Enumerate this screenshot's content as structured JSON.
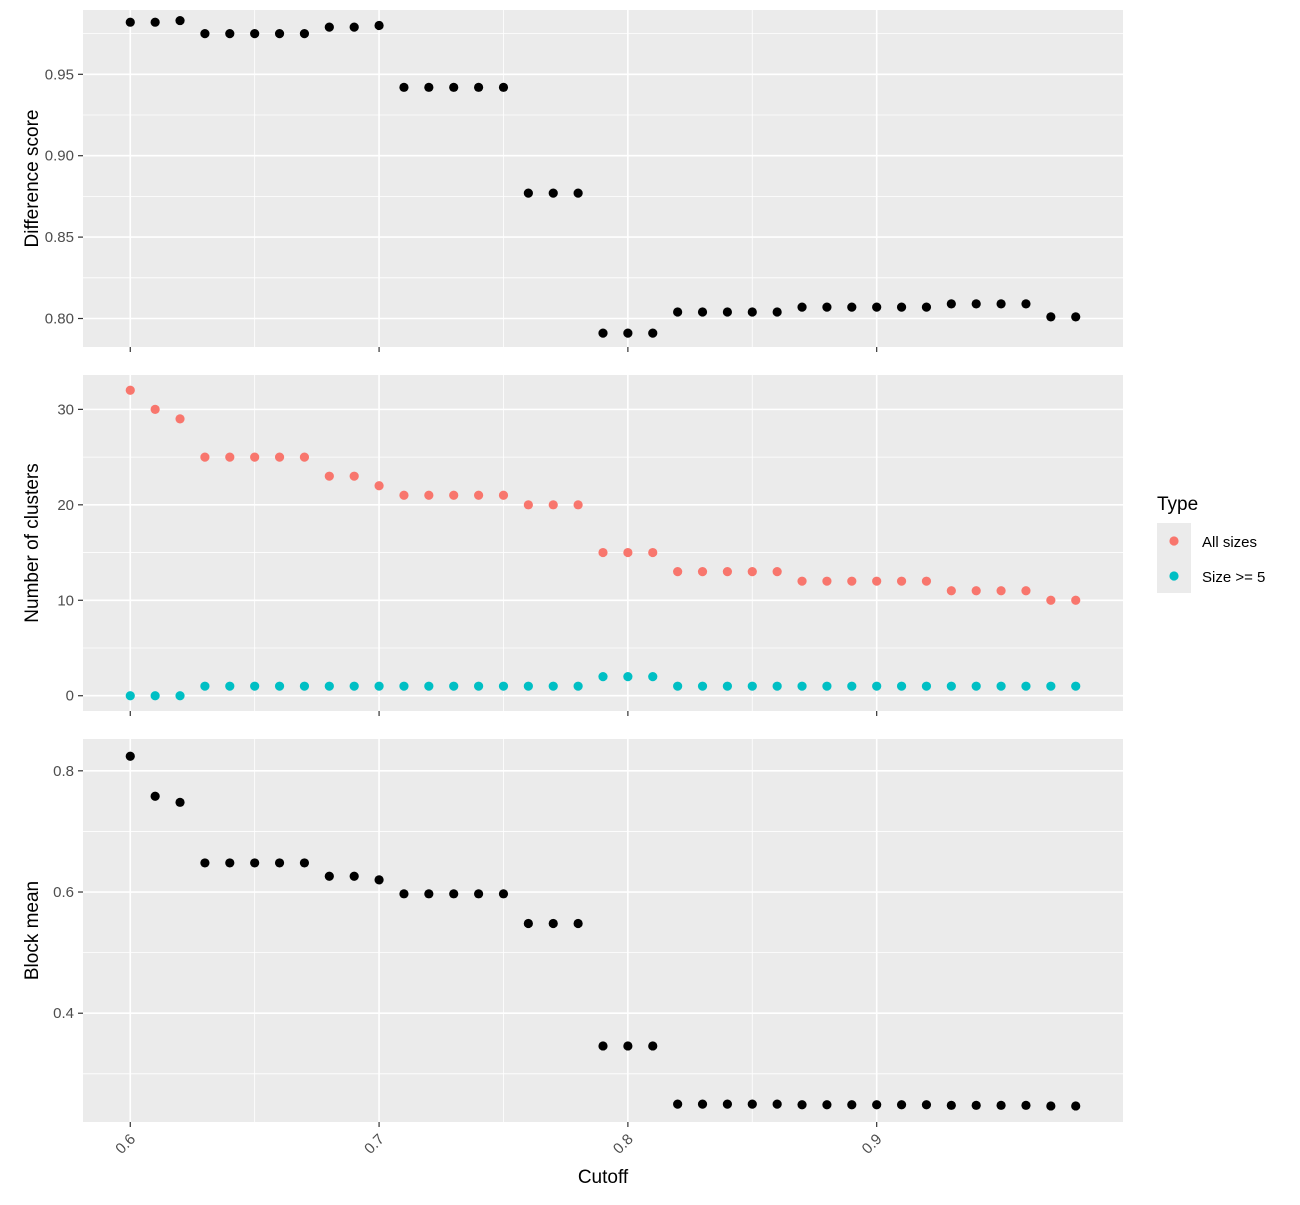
{
  "chart_data": {
    "type": "scatter",
    "x_axis": {
      "label": "Cutoff",
      "range": [
        0.581,
        0.999
      ],
      "ticks": [
        0.6,
        0.7,
        0.8,
        0.9
      ],
      "tick_labels": [
        "0.6",
        "0.7",
        "0.8",
        "0.9"
      ],
      "tick_label_rotation_deg": -45
    },
    "colors": {
      "panel_background": "#EBEBEB",
      "grid": "#FFFFFF",
      "points_default": "#000000",
      "all_sizes": "#F8766D",
      "size_ge_5": "#00BFC4"
    },
    "legend": {
      "title": "Type",
      "position": "right",
      "entries": [
        {
          "label": "All sizes",
          "color": "#F8766D"
        },
        {
          "label": "Size >= 5",
          "color": "#00BFC4"
        }
      ]
    },
    "panels": [
      {
        "ylabel": "Difference score",
        "ylim": [
          0.7825,
          0.9895
        ],
        "yticks": [
          0.8,
          0.85,
          0.9,
          0.95
        ],
        "ytick_labels": [
          "0.80",
          "0.85",
          "0.90",
          "0.95"
        ],
        "grid": true,
        "series": [
          {
            "color": "#000000",
            "points": [
              [
                0.6,
                0.982
              ],
              [
                0.61,
                0.982
              ],
              [
                0.62,
                0.983
              ],
              [
                0.63,
                0.975
              ],
              [
                0.64,
                0.975
              ],
              [
                0.65,
                0.975
              ],
              [
                0.66,
                0.975
              ],
              [
                0.67,
                0.975
              ],
              [
                0.68,
                0.979
              ],
              [
                0.69,
                0.979
              ],
              [
                0.7,
                0.98
              ],
              [
                0.71,
                0.942
              ],
              [
                0.72,
                0.942
              ],
              [
                0.73,
                0.942
              ],
              [
                0.74,
                0.942
              ],
              [
                0.75,
                0.942
              ],
              [
                0.76,
                0.877
              ],
              [
                0.77,
                0.877
              ],
              [
                0.78,
                0.877
              ],
              [
                0.79,
                0.791
              ],
              [
                0.8,
                0.791
              ],
              [
                0.81,
                0.791
              ],
              [
                0.82,
                0.804
              ],
              [
                0.83,
                0.804
              ],
              [
                0.84,
                0.804
              ],
              [
                0.85,
                0.804
              ],
              [
                0.86,
                0.804
              ],
              [
                0.87,
                0.807
              ],
              [
                0.88,
                0.807
              ],
              [
                0.89,
                0.807
              ],
              [
                0.9,
                0.807
              ],
              [
                0.91,
                0.807
              ],
              [
                0.92,
                0.807
              ],
              [
                0.93,
                0.809
              ],
              [
                0.94,
                0.809
              ],
              [
                0.95,
                0.809
              ],
              [
                0.96,
                0.809
              ],
              [
                0.97,
                0.801
              ],
              [
                0.98,
                0.801
              ]
            ]
          }
        ]
      },
      {
        "ylabel": "Number of clusters",
        "ylim": [
          -1.6,
          33.6
        ],
        "yticks": [
          0,
          10,
          20,
          30
        ],
        "ytick_labels": [
          "0",
          "10",
          "20",
          "30"
        ],
        "grid": true,
        "series": [
          {
            "name": "All sizes",
            "color": "#F8766D",
            "points": [
              [
                0.6,
                32
              ],
              [
                0.61,
                30
              ],
              [
                0.62,
                29
              ],
              [
                0.63,
                25
              ],
              [
                0.64,
                25
              ],
              [
                0.65,
                25
              ],
              [
                0.66,
                25
              ],
              [
                0.67,
                25
              ],
              [
                0.68,
                23
              ],
              [
                0.69,
                23
              ],
              [
                0.7,
                22
              ],
              [
                0.71,
                21
              ],
              [
                0.72,
                21
              ],
              [
                0.73,
                21
              ],
              [
                0.74,
                21
              ],
              [
                0.75,
                21
              ],
              [
                0.76,
                20
              ],
              [
                0.77,
                20
              ],
              [
                0.78,
                20
              ],
              [
                0.79,
                15
              ],
              [
                0.8,
                15
              ],
              [
                0.81,
                15
              ],
              [
                0.82,
                13
              ],
              [
                0.83,
                13
              ],
              [
                0.84,
                13
              ],
              [
                0.85,
                13
              ],
              [
                0.86,
                13
              ],
              [
                0.87,
                12
              ],
              [
                0.88,
                12
              ],
              [
                0.89,
                12
              ],
              [
                0.9,
                12
              ],
              [
                0.91,
                12
              ],
              [
                0.92,
                12
              ],
              [
                0.93,
                11
              ],
              [
                0.94,
                11
              ],
              [
                0.95,
                11
              ],
              [
                0.96,
                11
              ],
              [
                0.97,
                10
              ],
              [
                0.98,
                10
              ]
            ]
          },
          {
            "name": "Size >= 5",
            "color": "#00BFC4",
            "points": [
              [
                0.6,
                0
              ],
              [
                0.61,
                0
              ],
              [
                0.62,
                0
              ],
              [
                0.63,
                1
              ],
              [
                0.64,
                1
              ],
              [
                0.65,
                1
              ],
              [
                0.66,
                1
              ],
              [
                0.67,
                1
              ],
              [
                0.68,
                1
              ],
              [
                0.69,
                1
              ],
              [
                0.7,
                1
              ],
              [
                0.71,
                1
              ],
              [
                0.72,
                1
              ],
              [
                0.73,
                1
              ],
              [
                0.74,
                1
              ],
              [
                0.75,
                1
              ],
              [
                0.76,
                1
              ],
              [
                0.77,
                1
              ],
              [
                0.78,
                1
              ],
              [
                0.79,
                2
              ],
              [
                0.8,
                2
              ],
              [
                0.81,
                2
              ],
              [
                0.82,
                1
              ],
              [
                0.83,
                1
              ],
              [
                0.84,
                1
              ],
              [
                0.85,
                1
              ],
              [
                0.86,
                1
              ],
              [
                0.87,
                1
              ],
              [
                0.88,
                1
              ],
              [
                0.89,
                1
              ],
              [
                0.9,
                1
              ],
              [
                0.91,
                1
              ],
              [
                0.92,
                1
              ],
              [
                0.93,
                1
              ],
              [
                0.94,
                1
              ],
              [
                0.95,
                1
              ],
              [
                0.96,
                1
              ],
              [
                0.97,
                1
              ],
              [
                0.98,
                1
              ]
            ]
          }
        ]
      },
      {
        "ylabel": "Block mean",
        "ylim": [
          0.2205,
          0.8525
        ],
        "yticks": [
          0.4,
          0.6,
          0.8
        ],
        "ytick_labels": [
          "0.4",
          "0.6",
          "0.8"
        ],
        "grid": true,
        "series": [
          {
            "color": "#000000",
            "points": [
              [
                0.6,
                0.824
              ],
              [
                0.61,
                0.758
              ],
              [
                0.62,
                0.748
              ],
              [
                0.63,
                0.648
              ],
              [
                0.64,
                0.648
              ],
              [
                0.65,
                0.648
              ],
              [
                0.66,
                0.648
              ],
              [
                0.67,
                0.648
              ],
              [
                0.68,
                0.626
              ],
              [
                0.69,
                0.626
              ],
              [
                0.7,
                0.62
              ],
              [
                0.71,
                0.597
              ],
              [
                0.72,
                0.597
              ],
              [
                0.73,
                0.597
              ],
              [
                0.74,
                0.597
              ],
              [
                0.75,
                0.597
              ],
              [
                0.76,
                0.548
              ],
              [
                0.77,
                0.548
              ],
              [
                0.78,
                0.548
              ],
              [
                0.79,
                0.346
              ],
              [
                0.8,
                0.346
              ],
              [
                0.81,
                0.346
              ],
              [
                0.82,
                0.25
              ],
              [
                0.83,
                0.25
              ],
              [
                0.84,
                0.25
              ],
              [
                0.85,
                0.25
              ],
              [
                0.86,
                0.25
              ],
              [
                0.87,
                0.249
              ],
              [
                0.88,
                0.249
              ],
              [
                0.89,
                0.249
              ],
              [
                0.9,
                0.249
              ],
              [
                0.91,
                0.249
              ],
              [
                0.92,
                0.249
              ],
              [
                0.93,
                0.248
              ],
              [
                0.94,
                0.248
              ],
              [
                0.95,
                0.248
              ],
              [
                0.96,
                0.248
              ],
              [
                0.97,
                0.247
              ],
              [
                0.98,
                0.247
              ]
            ]
          }
        ]
      }
    ]
  }
}
